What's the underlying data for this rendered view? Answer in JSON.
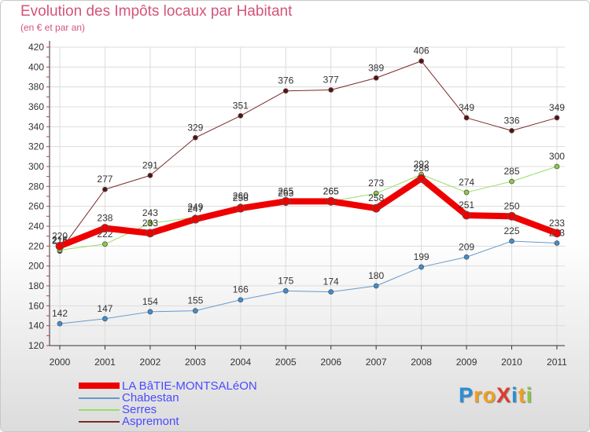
{
  "title": "Evolution des Impôts locaux par Habitant",
  "subtitle": "(en € et par an)",
  "logo": {
    "text": "ProXiti",
    "letters": [
      "P",
      "r",
      "o",
      "X",
      "i",
      "t",
      "i"
    ],
    "colors": [
      "#2a8fd6",
      "#f2a01e",
      "#f2a01e",
      "#e23a2a",
      "#2a8fd6",
      "#f2a01e",
      "#8cc63f"
    ]
  },
  "chart_data": {
    "type": "line",
    "title": "Evolution des Impôts locaux par Habitant",
    "ylabel": "(en € et par an)",
    "x": [
      "2000",
      "2001",
      "2002",
      "2003",
      "2004",
      "2005",
      "2006",
      "2007",
      "2008",
      "2009",
      "2010",
      "2011"
    ],
    "yticks": [
      120,
      140,
      160,
      180,
      200,
      220,
      240,
      260,
      280,
      300,
      320,
      340,
      360,
      380,
      400,
      420
    ],
    "ylim": [
      120,
      420
    ],
    "grid": true,
    "legend_position": "bottom-left",
    "series": [
      {
        "name": "Aspremont",
        "color": "#7a2a2a",
        "width": 1,
        "marker": "#5a1010",
        "values": [
          215,
          277,
          291,
          329,
          351,
          376,
          377,
          389,
          406,
          349,
          336,
          349
        ],
        "labels": [
          "215",
          "277",
          "291",
          "329",
          "351",
          "376",
          "377",
          "389",
          "406",
          "349",
          "336",
          "349"
        ]
      },
      {
        "name": "Serres",
        "color": "#99dd66",
        "width": 1,
        "marker": "#8acc3c",
        "values": [
          216,
          222,
          243,
          249,
          260,
          263,
          265,
          273,
          292,
          274,
          285,
          300
        ],
        "labels": [
          "216",
          "222",
          "243",
          "249",
          "260",
          "263",
          "265",
          "273",
          "292",
          "274",
          "285",
          "300"
        ]
      },
      {
        "name": "Chabestan",
        "color": "#6699cc",
        "width": 1,
        "marker": "#3a8fd6",
        "values": [
          142,
          147,
          154,
          155,
          166,
          175,
          174,
          180,
          199,
          209,
          225,
          223
        ],
        "labels": [
          "142",
          "147",
          "154",
          "155",
          "166",
          "175",
          "174",
          "180",
          "199",
          "209",
          "225",
          "223"
        ]
      },
      {
        "name": "LA BâTIE-MONTSALéON",
        "color": "#ee0000",
        "width": 8,
        "marker": "#ee0000",
        "values": [
          220,
          238,
          233,
          247,
          258,
          265,
          265,
          258,
          288,
          251,
          250,
          233
        ],
        "labels": [
          "220",
          "238",
          "233",
          "247",
          "258",
          "265",
          "265",
          "258",
          "288",
          "251",
          "250",
          "233"
        ]
      }
    ],
    "legend": [
      "LA BâTIE-MONTSALéON",
      "Chabestan",
      "Serres",
      "Aspremont"
    ]
  }
}
